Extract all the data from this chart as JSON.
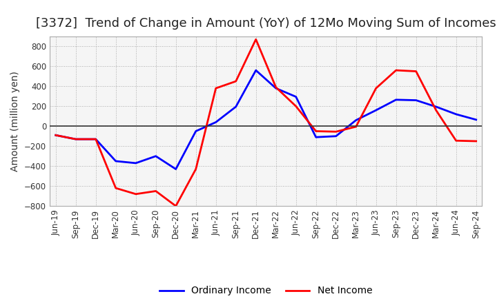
{
  "title": "[3372]  Trend of Change in Amount (YoY) of 12Mo Moving Sum of Incomes",
  "ylabel": "Amount (million yen)",
  "x_labels": [
    "Jun-19",
    "Sep-19",
    "Dec-19",
    "Mar-20",
    "Jun-20",
    "Sep-20",
    "Dec-20",
    "Mar-21",
    "Jun-21",
    "Sep-21",
    "Dec-21",
    "Mar-22",
    "Jun-22",
    "Sep-22",
    "Dec-22",
    "Mar-23",
    "Jun-23",
    "Sep-23",
    "Dec-23",
    "Mar-24",
    "Jun-24",
    "Sep-24"
  ],
  "ordinary_income": [
    -90,
    -130,
    -130,
    -350,
    -370,
    -300,
    -430,
    -50,
    40,
    195,
    560,
    380,
    295,
    -110,
    -100,
    60,
    160,
    265,
    260,
    195,
    120,
    65
  ],
  "net_income": [
    -90,
    -130,
    -130,
    -620,
    -680,
    -650,
    -800,
    -430,
    380,
    450,
    870,
    390,
    200,
    -50,
    -55,
    -5,
    380,
    560,
    550,
    160,
    -145,
    -150
  ],
  "ylim": [
    -800,
    900
  ],
  "yticks": [
    -800,
    -600,
    -400,
    -200,
    0,
    200,
    400,
    600,
    800
  ],
  "ordinary_color": "#0000FF",
  "net_color": "#FF0000",
  "bg_color": "#FFFFFF",
  "plot_bg_color": "#F5F5F5",
  "grid_color": "#AAAAAA",
  "line_width": 2.0,
  "legend_ordinary": "Ordinary Income",
  "legend_net": "Net Income",
  "title_fontsize": 13,
  "axis_label_fontsize": 10,
  "tick_fontsize": 8.5
}
